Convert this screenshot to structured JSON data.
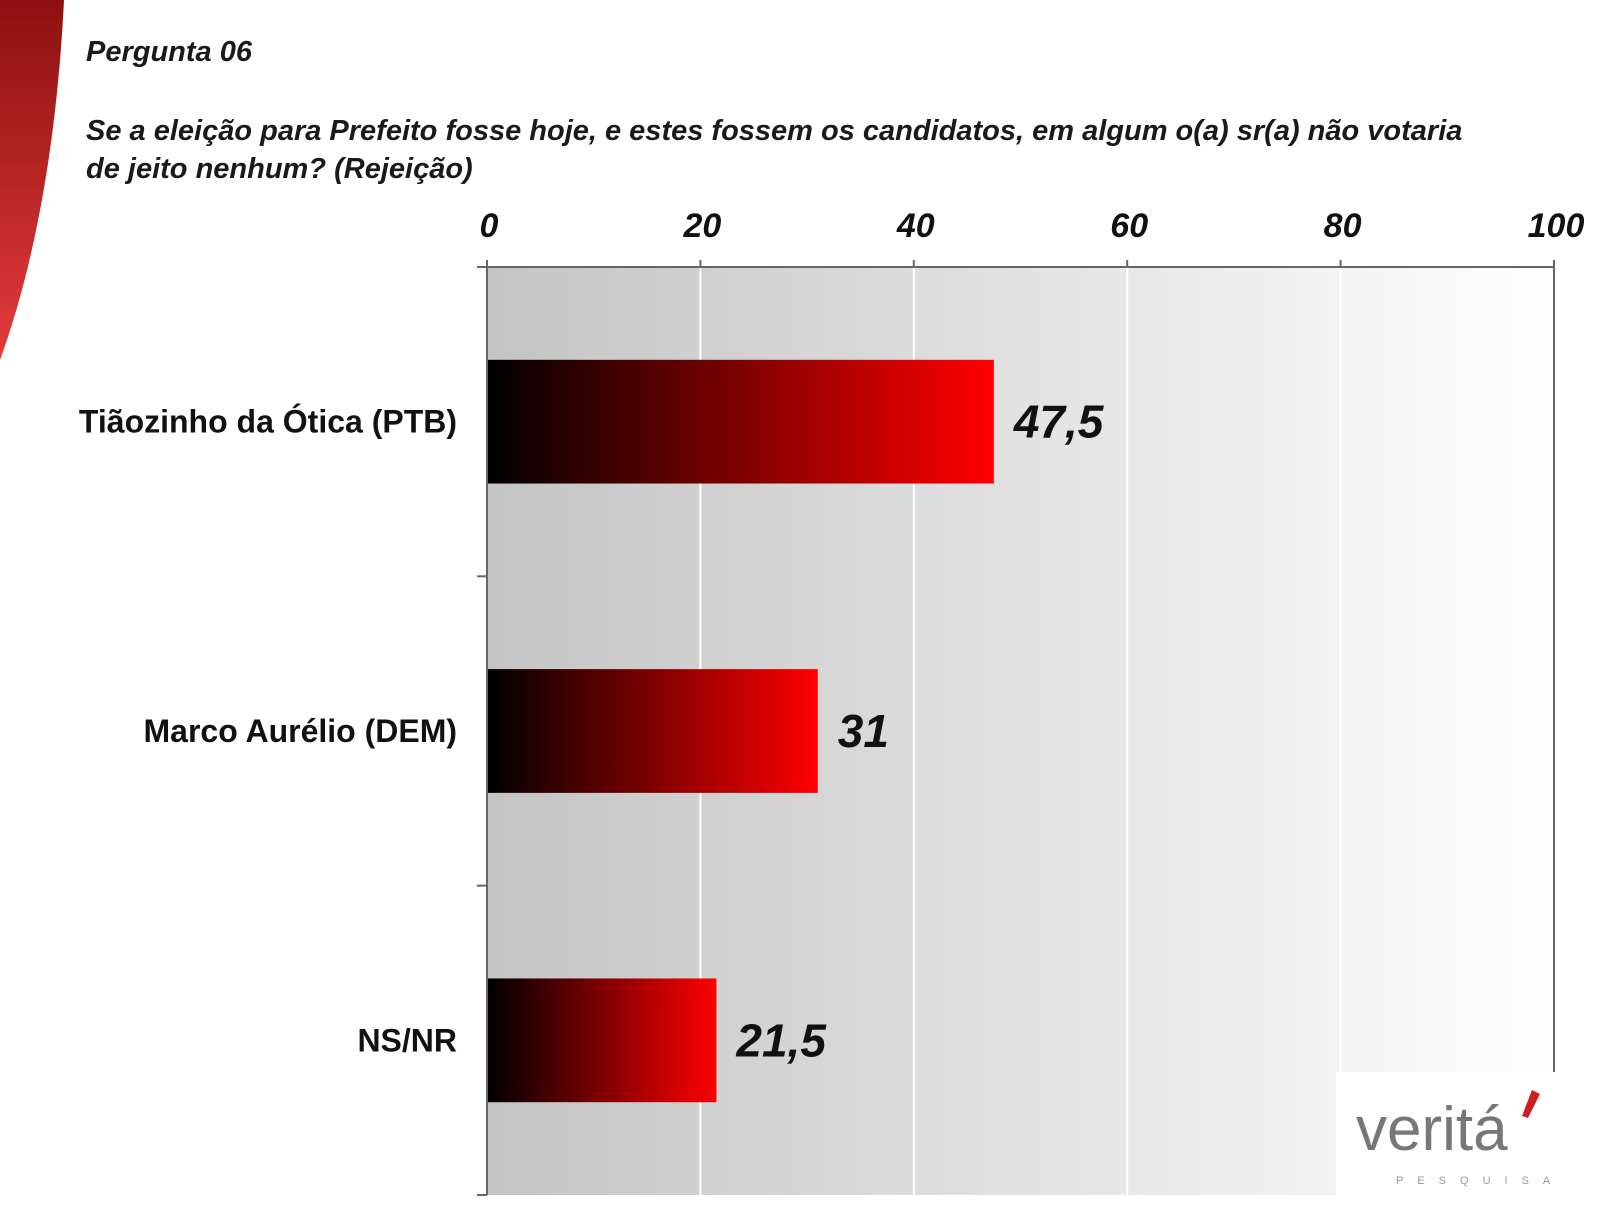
{
  "question": {
    "label": "Pergunta 06",
    "text": "Se a eleição para Prefeito fosse hoje, e estes fossem os candidatos, em algum o(a) sr(a) não votaria de jeito nenhum? (Rejeição)"
  },
  "chart_data": {
    "type": "bar",
    "orientation": "horizontal",
    "categories": [
      "Tiãozinho da Ótica (PTB)",
      "Marco Aurélio (DEM)",
      "NS/NR"
    ],
    "values": [
      47.5,
      31,
      21.5
    ],
    "value_labels": [
      "47,5",
      "31",
      "21,5"
    ],
    "xlim": [
      0,
      100
    ],
    "xticks": [
      0,
      20,
      40,
      60,
      80,
      100
    ],
    "xaxis_position": "top",
    "grid": true,
    "colors": {
      "bar_start": "#000000",
      "bar_end": "#ff0000",
      "accent": "#cc1f1f"
    }
  },
  "logo": {
    "name": "veritá",
    "tagline": "PESQUISA"
  }
}
